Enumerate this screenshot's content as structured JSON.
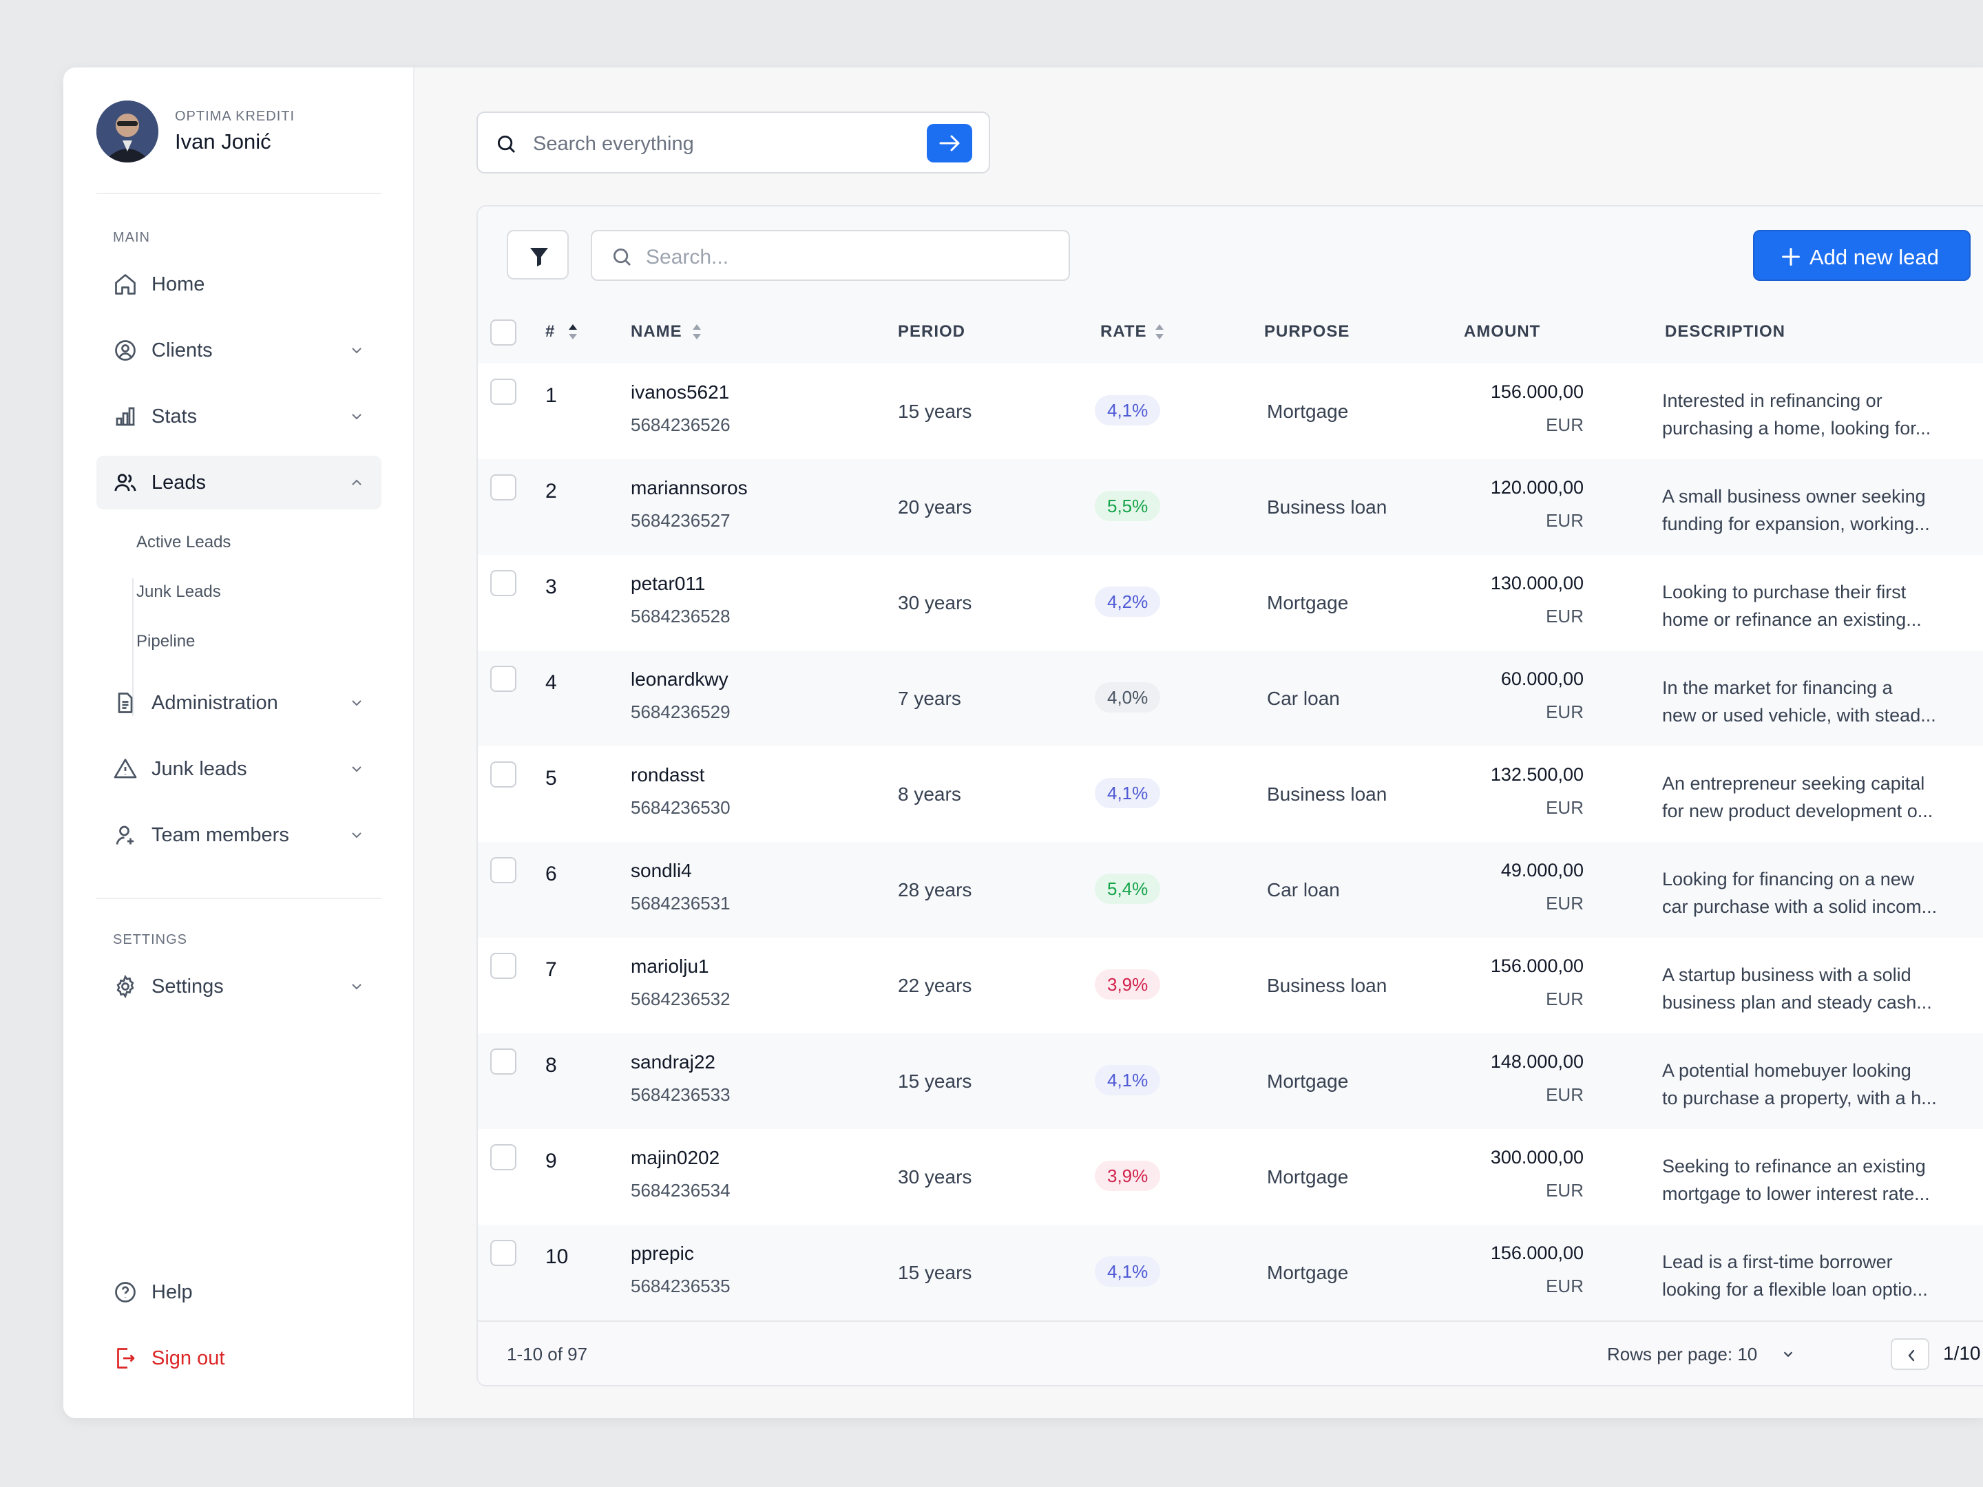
{
  "profile": {
    "company": "OPTIMA KREDITI",
    "name": "Ivan Jonić"
  },
  "sidebar": {
    "main_label": "MAIN",
    "settings_label": "SETTINGS",
    "items": [
      {
        "label": "Home",
        "icon": "home-icon"
      },
      {
        "label": "Clients",
        "icon": "user-circle-icon"
      },
      {
        "label": "Stats",
        "icon": "bar-chart-icon"
      },
      {
        "label": "Leads",
        "icon": "users-icon"
      },
      {
        "label": "Administration",
        "icon": "document-icon"
      },
      {
        "label": "Junk leads",
        "icon": "warning-icon"
      },
      {
        "label": "Team members",
        "icon": "user-add-icon"
      }
    ],
    "sub_items": [
      "Active Leads",
      "Junk Leads",
      "Pipeline"
    ],
    "settings": "Settings",
    "help": "Help",
    "signout": "Sign out"
  },
  "topsearch": {
    "placeholder": "Search everything"
  },
  "table": {
    "search_placeholder": "Search...",
    "add_label": "Add new lead",
    "headers": {
      "num": "#",
      "name": "NAME",
      "period": "PERIOD",
      "rate": "RATE",
      "purpose": "PURPOSE",
      "amount": "AMOUNT",
      "description": "DESCRIPTION"
    },
    "rows": [
      {
        "num": "1",
        "name": "ivanos5621",
        "id": "5684236526",
        "period": "15 years",
        "rate": "4,1%",
        "rate_tone": "blue",
        "purpose": "Mortgage",
        "amount": "156.000,00",
        "currency": "EUR",
        "desc1": "Interested in refinancing or",
        "desc2": "purchasing a home, looking for..."
      },
      {
        "num": "2",
        "name": "mariannsoros",
        "id": "5684236527",
        "period": "20 years",
        "rate": "5,5%",
        "rate_tone": "green",
        "purpose": "Business loan",
        "amount": "120.000,00",
        "currency": "EUR",
        "desc1": "A small business owner seeking",
        "desc2": "funding for expansion, working..."
      },
      {
        "num": "3",
        "name": "petar011",
        "id": "5684236528",
        "period": "30 years",
        "rate": "4,2%",
        "rate_tone": "blue",
        "purpose": "Mortgage",
        "amount": "130.000,00",
        "currency": "EUR",
        "desc1": "Looking to purchase their first",
        "desc2": "home or refinance an existing..."
      },
      {
        "num": "4",
        "name": "leonardkwy",
        "id": "5684236529",
        "period": "7 years",
        "rate": "4,0%",
        "rate_tone": "gray",
        "purpose": "Car loan",
        "amount": "60.000,00",
        "currency": "EUR",
        "desc1": "In the market for financing a",
        "desc2": "new or used vehicle, with stead..."
      },
      {
        "num": "5",
        "name": "rondasst",
        "id": "5684236530",
        "period": "8 years",
        "rate": "4,1%",
        "rate_tone": "blue",
        "purpose": "Business loan",
        "amount": "132.500,00",
        "currency": "EUR",
        "desc1": "An entrepreneur seeking capital",
        "desc2": "for new product development o..."
      },
      {
        "num": "6",
        "name": "sondli4",
        "id": "5684236531",
        "period": "28 years",
        "rate": "5,4%",
        "rate_tone": "green",
        "purpose": "Car loan",
        "amount": "49.000,00",
        "currency": "EUR",
        "desc1": "Looking for financing on a new",
        "desc2": "car purchase with a solid incom..."
      },
      {
        "num": "7",
        "name": "mariolju1",
        "id": "5684236532",
        "period": "22 years",
        "rate": "3,9%",
        "rate_tone": "red",
        "purpose": "Business loan",
        "amount": "156.000,00",
        "currency": "EUR",
        "desc1": "A startup business with a solid",
        "desc2": "business plan and steady cash..."
      },
      {
        "num": "8",
        "name": "sandraj22",
        "id": "5684236533",
        "period": "15 years",
        "rate": "4,1%",
        "rate_tone": "blue",
        "purpose": "Mortgage",
        "amount": "148.000,00",
        "currency": "EUR",
        "desc1": "A potential homebuyer looking",
        "desc2": "to purchase a property, with a h..."
      },
      {
        "num": "9",
        "name": "majin0202",
        "id": "5684236534",
        "period": "30 years",
        "rate": "3,9%",
        "rate_tone": "red",
        "purpose": "Mortgage",
        "amount": "300.000,00",
        "currency": "EUR",
        "desc1": "Seeking to refinance an existing",
        "desc2": "mortgage to lower interest rate..."
      },
      {
        "num": "10",
        "name": "pprepic",
        "id": "5684236535",
        "period": "15 years",
        "rate": "4,1%",
        "rate_tone": "blue",
        "purpose": "Mortgage",
        "amount": "156.000,00",
        "currency": "EUR",
        "desc1": "Lead is a first-time borrower",
        "desc2": "looking for a flexible loan optio..."
      }
    ]
  },
  "footer": {
    "count": "1-10 of 97",
    "rows_per_page": "Rows per page: 10",
    "page": "1/10"
  },
  "colors": {
    "accent": "#1d6ff2",
    "danger": "#dc2626"
  }
}
